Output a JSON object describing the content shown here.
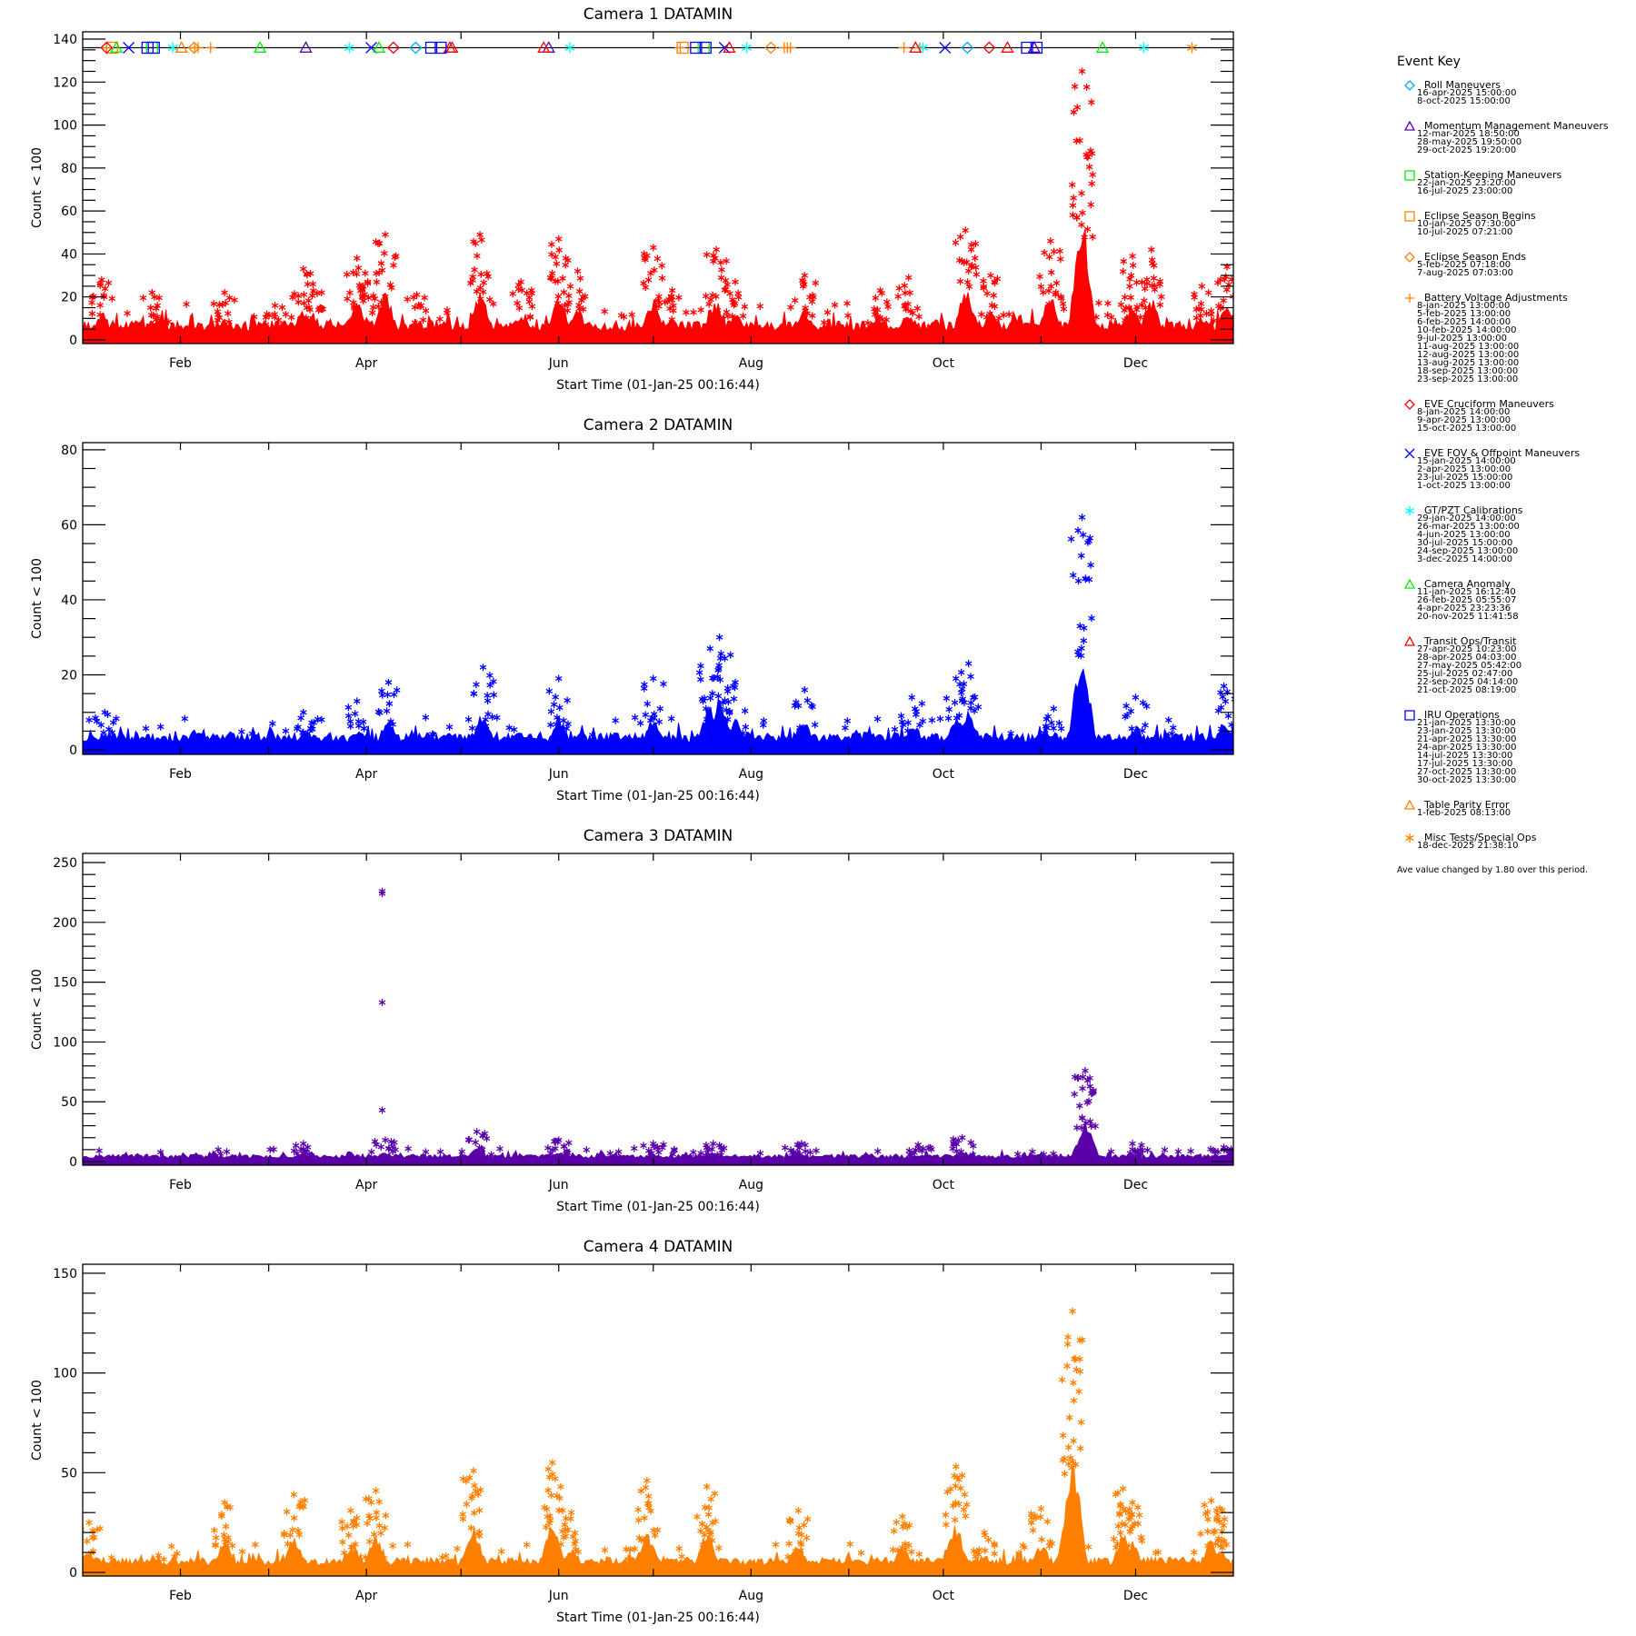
{
  "colors": {
    "cam1": "#ff0000",
    "cam2": "#0000ff",
    "cam3": "#5a00a8",
    "cam4": "#ff8000"
  },
  "chart_data": [
    {
      "type": "scatter",
      "title": "Camera  1  DATAMIN",
      "xlabel": "Start Time (01-Jan-25 00:16:44)",
      "ylabel": "Count < 100",
      "ylim": [
        -1.7,
        143.4
      ],
      "yticks": [
        "0",
        "20",
        "40",
        "60",
        "80",
        "100",
        "120",
        "140"
      ],
      "ytick_values": [
        0,
        20,
        40,
        60,
        80,
        100,
        120,
        140
      ],
      "yminor": 5,
      "xticks": [
        "Feb",
        "Apr",
        "Jun",
        "Aug",
        "Oct",
        "Dec"
      ],
      "xtick_days": [
        31,
        90,
        151,
        212,
        273,
        334
      ],
      "color": "#ff0000",
      "baseline": 6,
      "bursts": [
        [
          6,
          28
        ],
        [
          22,
          22
        ],
        [
          45,
          22
        ],
        [
          61,
          16
        ],
        [
          70,
          33
        ],
        [
          73,
          26
        ],
        [
          87,
          38
        ],
        [
          89,
          25
        ],
        [
          96,
          49
        ],
        [
          106,
          21
        ],
        [
          126,
          49
        ],
        [
          139,
          27
        ],
        [
          151,
          47
        ],
        [
          157,
          32
        ],
        [
          181,
          43
        ],
        [
          187,
          23
        ],
        [
          201,
          42
        ],
        [
          207,
          27
        ],
        [
          229,
          30
        ],
        [
          253,
          23
        ],
        [
          262,
          29
        ],
        [
          280,
          51
        ],
        [
          288,
          30
        ],
        [
          307,
          46
        ],
        [
          317,
          125
        ],
        [
          333,
          39
        ],
        [
          339,
          42
        ],
        [
          355,
          25
        ],
        [
          363,
          34
        ]
      ],
      "extra_points": [],
      "event_line_value": 136
    },
    {
      "type": "scatter",
      "title": "Camera  2  DATAMIN",
      "xlabel": "Start Time (01-Jan-25 00:16:44)",
      "ylabel": "Count < 100",
      "ylim": [
        -1.2,
        81.9
      ],
      "yticks": [
        "0",
        "20",
        "40",
        "60",
        "80"
      ],
      "ytick_values": [
        0,
        20,
        40,
        60,
        80
      ],
      "yminor": 5,
      "xticks": [
        "Feb",
        "Apr",
        "Jun",
        "Aug",
        "Oct",
        "Dec"
      ],
      "xtick_days": [
        31,
        90,
        151,
        212,
        273,
        334
      ],
      "color": "#0000ff",
      "baseline": 3,
      "bursts": [
        [
          7,
          10
        ],
        [
          70,
          10
        ],
        [
          87,
          13
        ],
        [
          97,
          18
        ],
        [
          127,
          22
        ],
        [
          151,
          19
        ],
        [
          181,
          19
        ],
        [
          199,
          27
        ],
        [
          202,
          30
        ],
        [
          207,
          18
        ],
        [
          229,
          16
        ],
        [
          263,
          14
        ],
        [
          277,
          19
        ],
        [
          281,
          23
        ],
        [
          308,
          11
        ],
        [
          317,
          62
        ],
        [
          334,
          14
        ],
        [
          362,
          17
        ]
      ],
      "extra_points": []
    },
    {
      "type": "scatter",
      "title": "Camera  3  DATAMIN",
      "xlabel": "Start Time (01-Jan-25 00:16:44)",
      "ylabel": "Count < 100",
      "ylim": [
        -3,
        257.6
      ],
      "yticks": [
        "0",
        "50",
        "100",
        "150",
        "200",
        "250"
      ],
      "ytick_values": [
        0,
        50,
        100,
        150,
        200,
        250
      ],
      "yminor": 10,
      "xticks": [
        "Feb",
        "Apr",
        "Jun",
        "Aug",
        "Oct",
        "Dec"
      ],
      "xtick_days": [
        31,
        90,
        151,
        212,
        273,
        334
      ],
      "color": "#5a00a8",
      "baseline": 4,
      "bursts": [
        [
          70,
          15
        ],
        [
          96,
          18
        ],
        [
          125,
          25
        ],
        [
          151,
          18
        ],
        [
          181,
          15
        ],
        [
          200,
          15
        ],
        [
          228,
          15
        ],
        [
          265,
          14
        ],
        [
          279,
          20
        ],
        [
          318,
          76
        ],
        [
          333,
          15
        ],
        [
          362,
          12
        ]
      ],
      "extra_points": [
        [
          95,
          226
        ],
        [
          95,
          224
        ],
        [
          95,
          133
        ],
        [
          95,
          43
        ]
      ]
    },
    {
      "type": "scatter",
      "title": "Camera  4  DATAMIN",
      "xlabel": "Start Time (01-Jan-25 00:16:44)",
      "ylabel": "Count < 100",
      "ylim": [
        -1.8,
        154.5
      ],
      "yticks": [
        "0",
        "50",
        "100",
        "150"
      ],
      "ytick_values": [
        0,
        50,
        100,
        150
      ],
      "yminor": 10,
      "xticks": [
        "Feb",
        "Apr",
        "Jun",
        "Aug",
        "Oct",
        "Dec"
      ],
      "xtick_days": [
        31,
        90,
        151,
        212,
        273,
        334
      ],
      "color": "#ff8000",
      "baseline": 5,
      "bursts": [
        [
          2,
          25
        ],
        [
          45,
          35
        ],
        [
          67,
          39
        ],
        [
          85,
          31
        ],
        [
          93,
          41
        ],
        [
          124,
          51
        ],
        [
          149,
          55
        ],
        [
          155,
          30
        ],
        [
          179,
          46
        ],
        [
          198,
          43
        ],
        [
          227,
          31
        ],
        [
          260,
          28
        ],
        [
          277,
          53
        ],
        [
          286,
          20
        ],
        [
          304,
          32
        ],
        [
          314,
          131
        ],
        [
          330,
          42
        ],
        [
          333,
          35
        ],
        [
          358,
          36
        ],
        [
          360,
          29
        ]
      ],
      "extra_points": []
    }
  ],
  "legend": {
    "title": "Event Key",
    "entries": [
      {
        "label": "Roll Maneuvers",
        "symbol": "diamond",
        "color": "#00aaff",
        "dates": [
          "16-apr-2025 15:00:00",
          "8-oct-2025 15:00:00"
        ]
      },
      {
        "label": "Momentum Management Maneuvers",
        "symbol": "triangle",
        "color": "#5a00a8",
        "dates": [
          "12-mar-2025 18:50:00",
          "28-may-2025 19:50:00",
          "29-oct-2025 19:20:00"
        ]
      },
      {
        "label": "Station-Keeping Maneuvers",
        "symbol": "square",
        "color": "#00ee00",
        "dates": [
          "22-jan-2025 23:20:00",
          "16-jul-2025 23:00:00"
        ]
      },
      {
        "label": "Eclipse Season Begins",
        "symbol": "square",
        "color": "#ff8000",
        "dates": [
          "10-jan-2025 07:30:00",
          "10-jul-2025 07:21:00"
        ]
      },
      {
        "label": "Eclipse Season Ends",
        "symbol": "diamond",
        "color": "#ff8000",
        "dates": [
          "5-feb-2025 07:18:00",
          "7-aug-2025 07:03:00"
        ]
      },
      {
        "label": "Battery Voltage Adjustments",
        "symbol": "plus",
        "color": "#ff8000",
        "dates": [
          "8-jan-2025 13:00:00",
          "5-feb-2025 13:00:00",
          "6-feb-2025 14:00:00",
          "10-feb-2025 14:00:00",
          "9-jul-2025 13:00:00",
          "11-aug-2025 13:00:00",
          "12-aug-2025 13:00:00",
          "13-aug-2025 13:00:00",
          "18-sep-2025 13:00:00",
          "23-sep-2025 13:00:00"
        ]
      },
      {
        "label": "EVE Cruciform Maneuvers",
        "symbol": "diamond",
        "color": "#ff0000",
        "dates": [
          "8-jan-2025 14:00:00",
          "9-apr-2025 13:00:00",
          "15-oct-2025 13:00:00"
        ]
      },
      {
        "label": "EVE FOV & Offpoint Maneuvers",
        "symbol": "x",
        "color": "#0000ff",
        "dates": [
          "15-jan-2025 14:00:00",
          "2-apr-2025 13:00:00",
          "23-jul-2025 15:00:00",
          "1-oct-2025 13:00:00"
        ]
      },
      {
        "label": "GT/PZT Calibrations",
        "symbol": "asterisk",
        "color": "#00ffff",
        "dates": [
          "29-jan-2025 14:00:00",
          "26-mar-2025 13:00:00",
          "4-jun-2025 13:00:00",
          "30-jul-2025 15:00:00",
          "24-sep-2025 13:00:00",
          "3-dec-2025 14:00:00"
        ]
      },
      {
        "label": "Camera Anomaly",
        "symbol": "triangle",
        "color": "#00ee00",
        "dates": [
          "11-jan-2025 16:12:40",
          "26-feb-2025 05:55:07",
          "4-apr-2025 23:23:36",
          "20-nov-2025 11:41:58"
        ]
      },
      {
        "label": "Transit Ops/Transit",
        "symbol": "triangle",
        "color": "#ff0000",
        "dates": [
          "27-apr-2025 10:23:00",
          "28-apr-2025 04:03:00",
          "27-may-2025 05:42:00",
          "25-jul-2025 02:47:00",
          "22-sep-2025 04:14:00",
          "21-oct-2025 08:19:00"
        ]
      },
      {
        "label": "IRU Operations",
        "symbol": "square",
        "color": "#0000ff",
        "dates": [
          "21-jan-2025 13:30:00",
          "23-jan-2025 13:30:00",
          "21-apr-2025 13:30:00",
          "24-apr-2025 13:30:00",
          "14-jul-2025 13:30:00",
          "17-jul-2025 13:30:00",
          "27-oct-2025 13:30:00",
          "30-oct-2025 13:30:00"
        ]
      },
      {
        "label": "Table Parity Error",
        "symbol": "triangle",
        "color": "#ff8000",
        "dates": [
          "1-feb-2025 08:13:00"
        ]
      },
      {
        "label": "Misc Tests/Special Ops",
        "symbol": "asterisk",
        "color": "#ff8000",
        "dates": [
          "18-dec-2025 21:38:10"
        ]
      }
    ],
    "footer": "Ave value changed by 1.80 over this period."
  }
}
